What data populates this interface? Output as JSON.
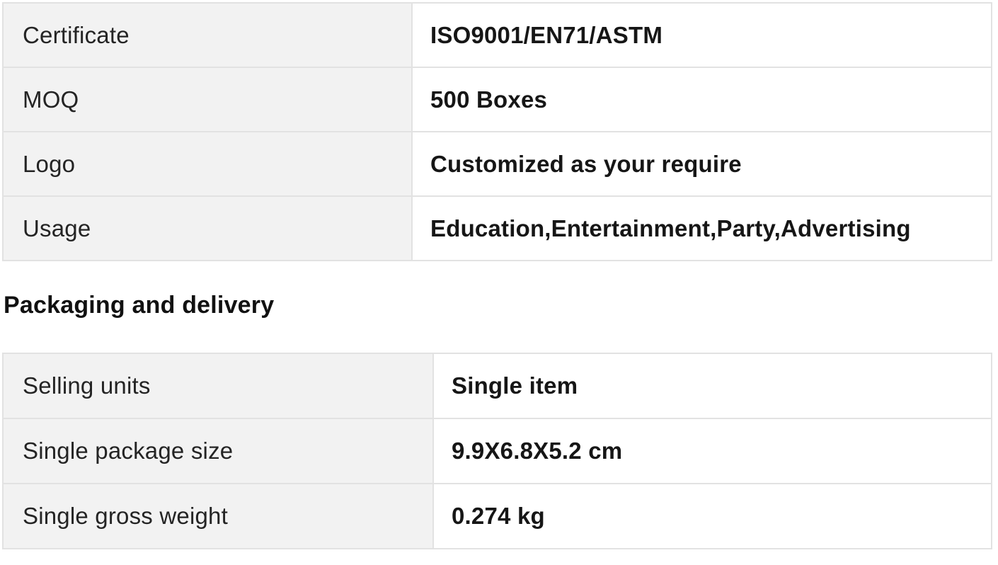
{
  "colors": {
    "page_bg": "#ffffff",
    "label_cell_bg": "#f2f2f2",
    "value_cell_bg": "#ffffff",
    "border": "#e2e2e2",
    "label_text": "#242424",
    "value_text": "#161616",
    "heading_text": "#111111"
  },
  "product_attributes_table": {
    "rows": [
      {
        "label": "Certificate",
        "value": "ISO9001/EN71/ASTM"
      },
      {
        "label": "MOQ",
        "value": "500 Boxes"
      },
      {
        "label": "Logo",
        "value": "Customized as your require"
      },
      {
        "label": "Usage",
        "value": "Education,Entertainment,Party,Advertising"
      }
    ]
  },
  "section_heading": "Packaging and delivery",
  "packaging_table": {
    "rows": [
      {
        "label": "Selling units",
        "value": "Single item"
      },
      {
        "label": "Single package size",
        "value": "9.9X6.8X5.2 cm"
      },
      {
        "label": "Single gross weight",
        "value": "0.274 kg"
      }
    ]
  }
}
